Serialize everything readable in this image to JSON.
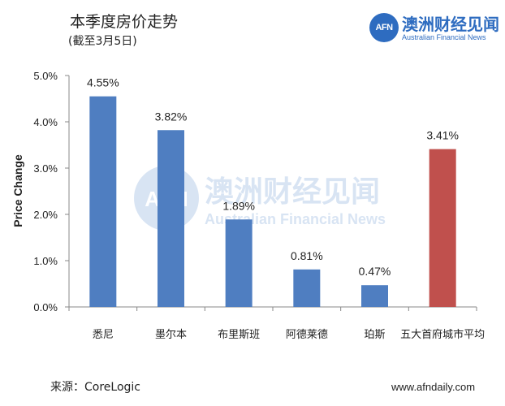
{
  "header": {
    "title": "本季度房价走势",
    "subtitle": "(截至3月5日)"
  },
  "brand": {
    "logo_text": "AFN",
    "name": "澳洲财经见闻",
    "subtitle": "Australian Financial News"
  },
  "watermark": {
    "logo_text": "AFN",
    "name": "澳洲财经见闻",
    "subtitle": "Australian Financial News"
  },
  "footer": {
    "source": "来源：CoreLogic",
    "website": "www.afndaily.com"
  },
  "chart_data": {
    "type": "bar",
    "title": "本季度房价走势",
    "subtitle": "(截至3月5日)",
    "xlabel": "",
    "ylabel": "Price Change",
    "categories": [
      "悉尼",
      "墨尔本",
      "布里斯班",
      "阿德莱德",
      "珀斯",
      "五大首府城市平均"
    ],
    "values": [
      4.55,
      3.82,
      1.89,
      0.81,
      0.47,
      3.41
    ],
    "data_labels": [
      "4.55%",
      "3.82%",
      "1.89%",
      "0.81%",
      "0.47%",
      "3.41%"
    ],
    "y_ticks": [
      "0.0%",
      "1.0%",
      "2.0%",
      "3.0%",
      "4.0%",
      "5.0%"
    ],
    "ylim": [
      0,
      5
    ],
    "grid": false,
    "legend": "none",
    "colors": [
      "#4f7ec1",
      "#4f7ec1",
      "#4f7ec1",
      "#4f7ec1",
      "#4f7ec1",
      "#c0504d"
    ]
  }
}
